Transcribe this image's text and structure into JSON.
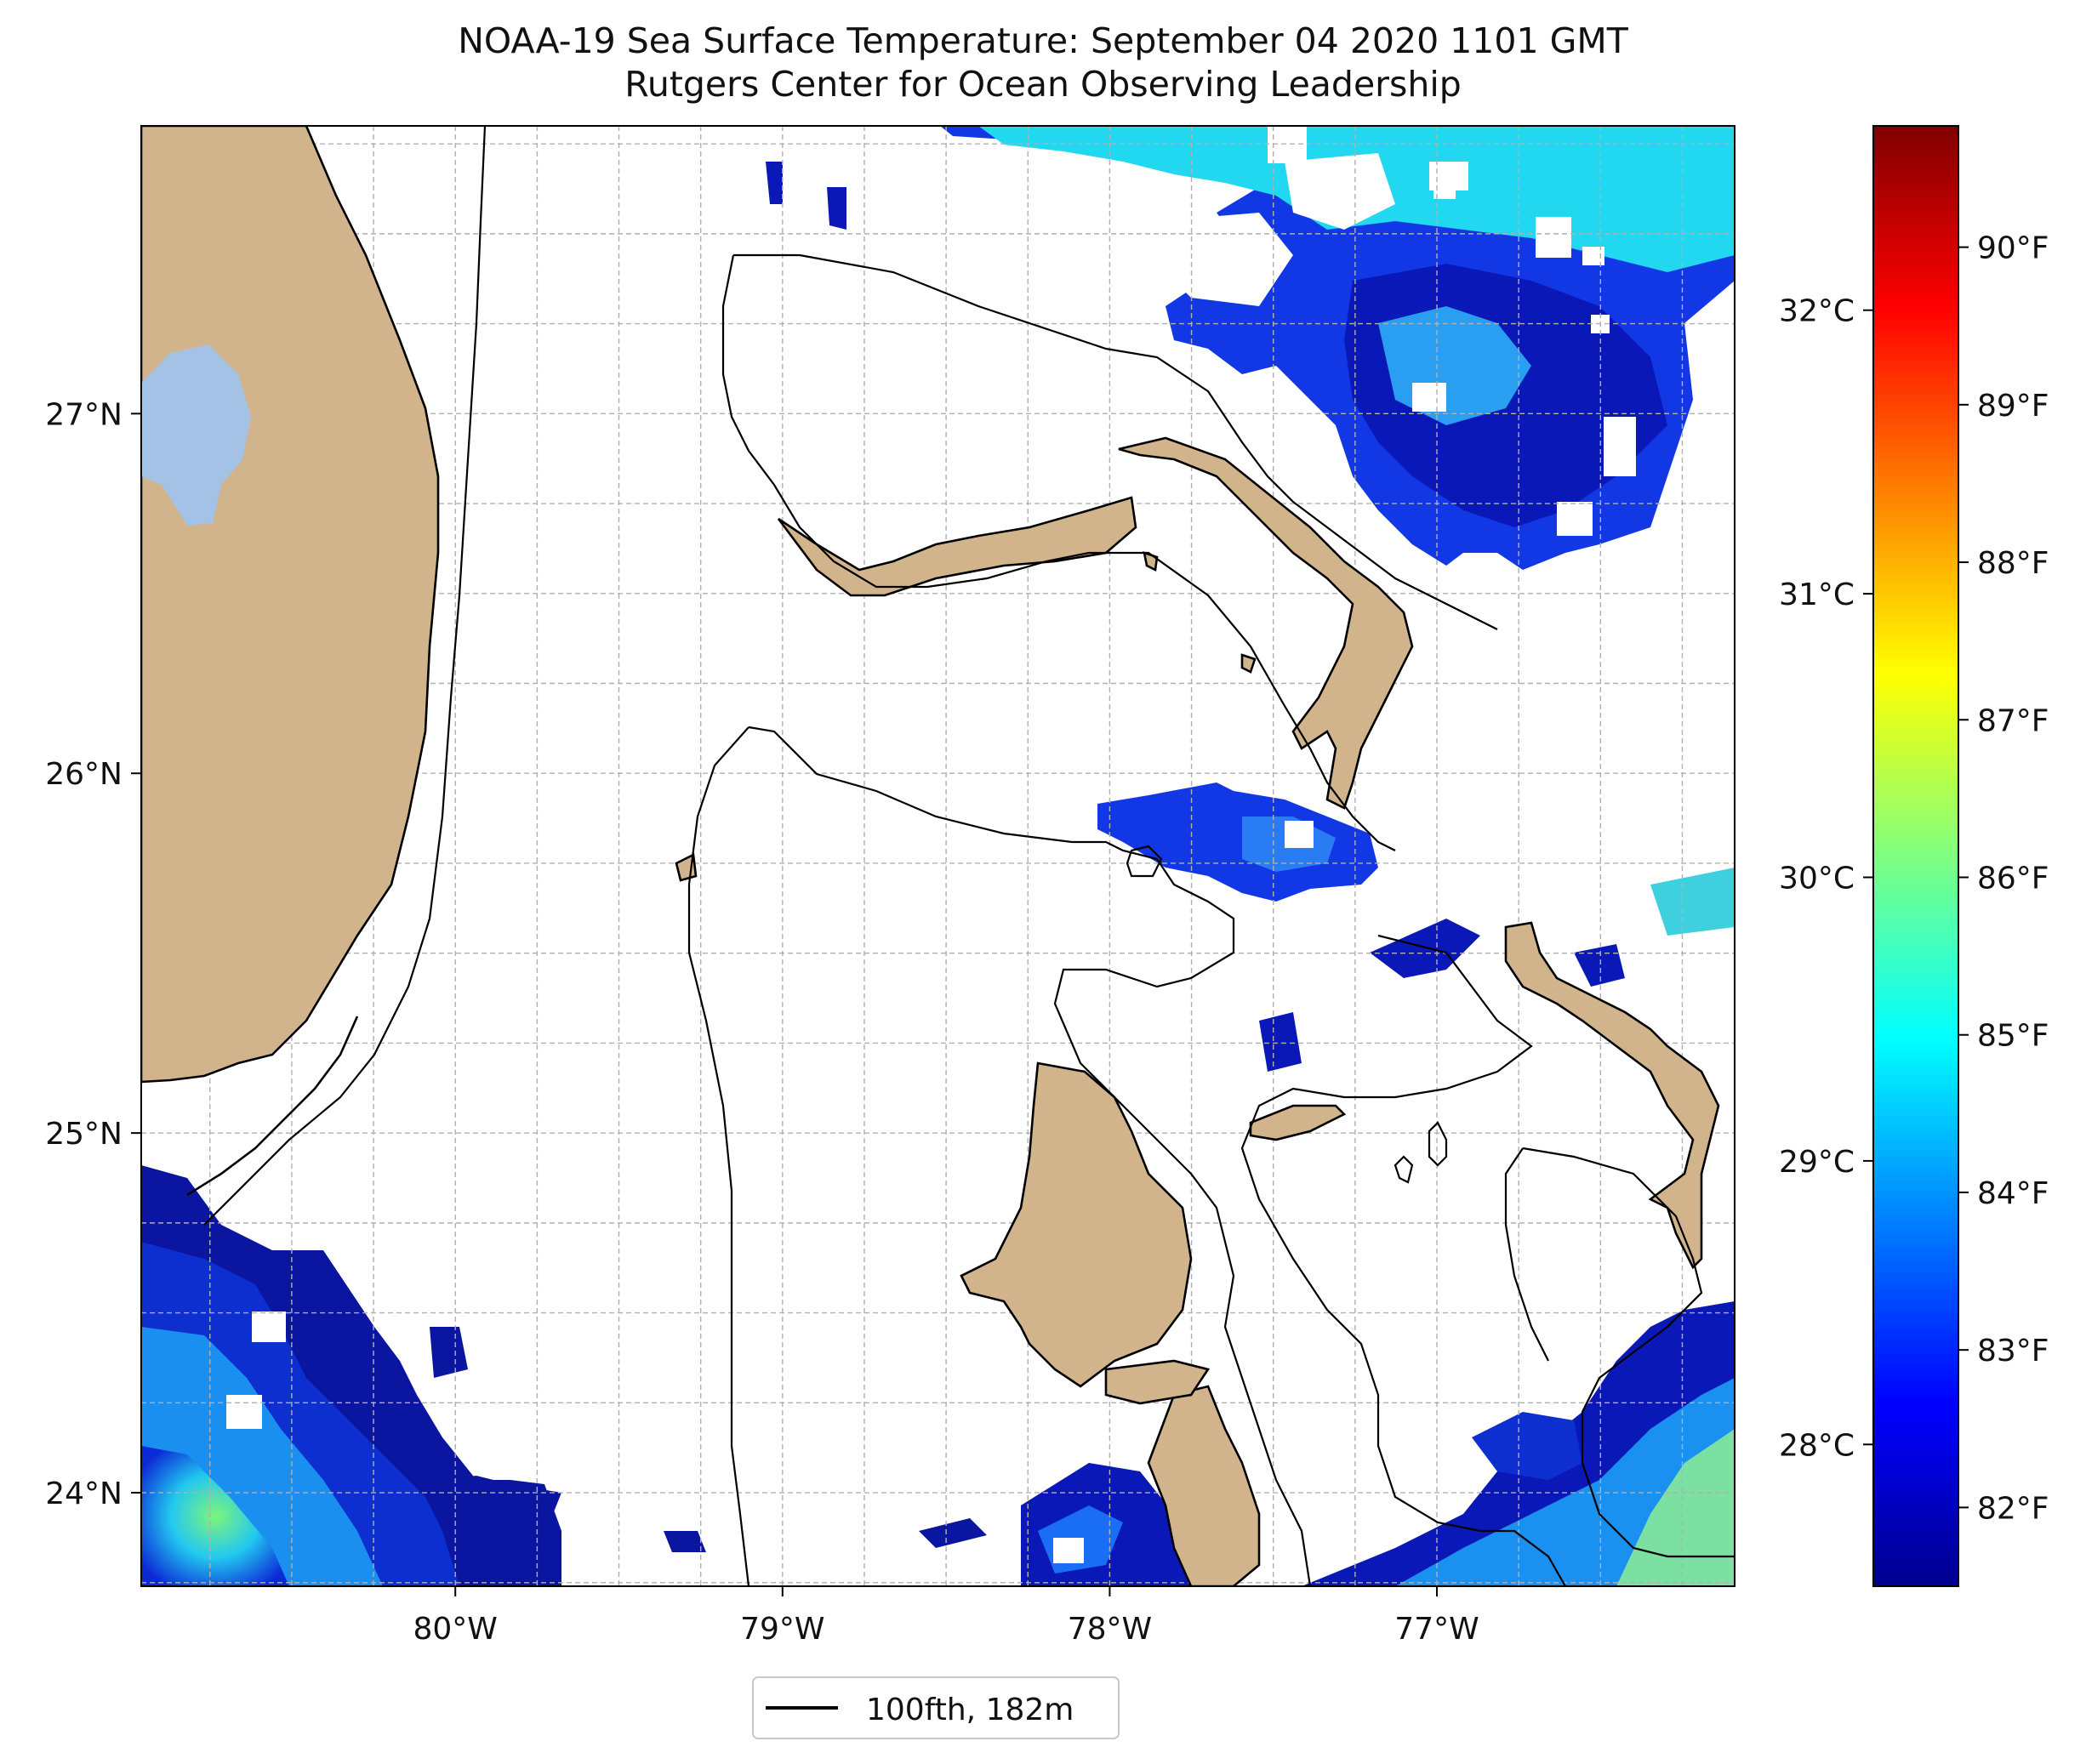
{
  "title": {
    "line1": "NOAA-19 Sea Surface Temperature: September 04 2020 1101 GMT",
    "line2": "Rutgers Center for Ocean Observing Leadership"
  },
  "map": {
    "lon_range": [
      -80.96,
      -76.09
    ],
    "lat_range": [
      23.74,
      27.8
    ],
    "gridlines": true,
    "x_ticks": [
      {
        "value": -80,
        "label": "80°W"
      },
      {
        "value": -79,
        "label": "79°W"
      },
      {
        "value": -78,
        "label": "78°W"
      },
      {
        "value": -77,
        "label": "77°W"
      }
    ],
    "y_ticks": [
      {
        "value": 24,
        "label": "24°N"
      },
      {
        "value": 25,
        "label": "25°N"
      },
      {
        "value": 26,
        "label": "26°N"
      },
      {
        "value": 27,
        "label": "27°N"
      }
    ],
    "colors": {
      "land": "#d2b48c",
      "lake": "#a4c2e6",
      "coast": "#000000",
      "grid": "#b0b0b0"
    }
  },
  "colorbar": {
    "colormap": "jet",
    "celsius_ticks": [
      {
        "value": 28,
        "label": "28°C"
      },
      {
        "value": 29,
        "label": "29°C"
      },
      {
        "value": 30,
        "label": "30°C"
      },
      {
        "value": 31,
        "label": "31°C"
      },
      {
        "value": 32,
        "label": "32°C"
      }
    ],
    "fahrenheit_ticks": [
      {
        "value": 82,
        "label": "82°F"
      },
      {
        "value": 83,
        "label": "83°F"
      },
      {
        "value": 84,
        "label": "84°F"
      },
      {
        "value": 85,
        "label": "85°F"
      },
      {
        "value": 86,
        "label": "86°F"
      },
      {
        "value": 87,
        "label": "87°F"
      },
      {
        "value": 88,
        "label": "88°F"
      },
      {
        "value": 89,
        "label": "89°F"
      },
      {
        "value": 90,
        "label": "90°F"
      }
    ],
    "range_c": [
      27.5,
      32.65
    ]
  },
  "legend": {
    "label": "100fth, 182m",
    "color": "#000000"
  }
}
